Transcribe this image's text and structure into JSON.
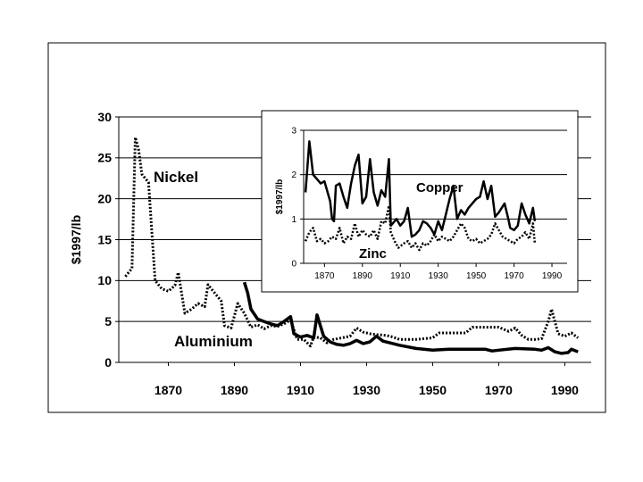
{
  "chart_data": [
    {
      "type": "line",
      "title": "",
      "xlabel": "",
      "ylabel": "$1997/lb",
      "xlim": [
        1855,
        1998
      ],
      "ylim": [
        0,
        30
      ],
      "yticks": [
        "0",
        "5",
        "10",
        "15",
        "20",
        "25",
        "30"
      ],
      "xticks": [
        "1870",
        "1890",
        "1910",
        "1930",
        "1950",
        "1970",
        "1990"
      ],
      "grid": "horizontal",
      "series": [
        {
          "name": "Nickel",
          "style": "dotted",
          "points": [
            [
              1857,
              10.5
            ],
            [
              1859,
              11.5
            ],
            [
              1860,
              27.5
            ],
            [
              1861,
              26
            ],
            [
              1862,
              23
            ],
            [
              1864,
              22
            ],
            [
              1865,
              16
            ],
            [
              1866,
              10
            ],
            [
              1868,
              9
            ],
            [
              1870,
              8.7
            ],
            [
              1872,
              9.4
            ],
            [
              1873,
              11
            ],
            [
              1875,
              6
            ],
            [
              1877,
              6.5
            ],
            [
              1879,
              7.2
            ],
            [
              1881,
              6.8
            ],
            [
              1882,
              9.5
            ],
            [
              1884,
              8.5
            ],
            [
              1886,
              7.5
            ],
            [
              1887,
              4.5
            ],
            [
              1889,
              4.2
            ],
            [
              1891,
              7.2
            ],
            [
              1893,
              6
            ],
            [
              1895,
              4.3
            ],
            [
              1897,
              4.6
            ],
            [
              1899,
              4.1
            ],
            [
              1901,
              4.5
            ],
            [
              1903,
              4.4
            ],
            [
              1905,
              4.7
            ],
            [
              1907,
              5.2
            ],
            [
              1909,
              2.8
            ],
            [
              1911,
              2.8
            ],
            [
              1913,
              2
            ],
            [
              1914,
              3.1
            ],
            [
              1916,
              3
            ],
            [
              1918,
              2.4
            ],
            [
              1920,
              2.8
            ],
            [
              1925,
              3.2
            ],
            [
              1927,
              4.2
            ],
            [
              1929,
              3.7
            ],
            [
              1931,
              3.5
            ],
            [
              1933,
              3.4
            ],
            [
              1936,
              3.3
            ],
            [
              1938,
              3.1
            ],
            [
              1940,
              2.8
            ],
            [
              1945,
              2.8
            ],
            [
              1950,
              3
            ],
            [
              1952,
              3.6
            ],
            [
              1960,
              3.6
            ],
            [
              1962,
              4.3
            ],
            [
              1970,
              4.3
            ],
            [
              1973,
              3.8
            ],
            [
              1975,
              4.2
            ],
            [
              1977,
              3.3
            ],
            [
              1979,
              2.8
            ],
            [
              1981,
              2.8
            ],
            [
              1983,
              2.9
            ],
            [
              1985,
              5
            ],
            [
              1986,
              6.5
            ],
            [
              1988,
              3.5
            ],
            [
              1990,
              3.2
            ],
            [
              1992,
              3.6
            ],
            [
              1994,
              3
            ]
          ]
        },
        {
          "name": "Aluminium",
          "style": "solid",
          "points": [
            [
              1893,
              9.8
            ],
            [
              1894,
              8.5
            ],
            [
              1895,
              6.5
            ],
            [
              1897,
              5.3
            ],
            [
              1899,
              5
            ],
            [
              1901,
              4.7
            ],
            [
              1903,
              4.5
            ],
            [
              1905,
              5
            ],
            [
              1907,
              5.6
            ],
            [
              1908,
              3.5
            ],
            [
              1910,
              3.1
            ],
            [
              1912,
              3.3
            ],
            [
              1914,
              3
            ],
            [
              1915,
              5.8
            ],
            [
              1917,
              3.2
            ],
            [
              1919,
              2.5
            ],
            [
              1921,
              2.2
            ],
            [
              1923,
              2.1
            ],
            [
              1925,
              2.3
            ],
            [
              1927,
              2.7
            ],
            [
              1929,
              2.3
            ],
            [
              1931,
              2.5
            ],
            [
              1933,
              3.2
            ],
            [
              1935,
              2.6
            ],
            [
              1938,
              2.3
            ],
            [
              1940,
              2.1
            ],
            [
              1945,
              1.7
            ],
            [
              1950,
              1.5
            ],
            [
              1955,
              1.6
            ],
            [
              1960,
              1.6
            ],
            [
              1966,
              1.6
            ],
            [
              1968,
              1.4
            ],
            [
              1970,
              1.5
            ],
            [
              1975,
              1.7
            ],
            [
              1981,
              1.6
            ],
            [
              1983,
              1.5
            ],
            [
              1985,
              1.8
            ],
            [
              1987,
              1.3
            ],
            [
              1989,
              1.1
            ],
            [
              1991,
              1.2
            ],
            [
              1992,
              1.6
            ],
            [
              1994,
              1.3
            ]
          ]
        }
      ]
    },
    {
      "type": "line",
      "title": "",
      "xlabel": "",
      "ylabel": "$1997/lb",
      "xlim": [
        1859,
        1998
      ],
      "ylim": [
        0,
        3
      ],
      "yticks": [
        "0",
        "1",
        "2",
        "3"
      ],
      "xticks": [
        "1870",
        "1890",
        "1910",
        "1930",
        "1950",
        "1970",
        "1990"
      ],
      "grid": "horizontal",
      "series": [
        {
          "name": "Copper",
          "style": "solid",
          "points": [
            [
              1860,
              1.6
            ],
            [
              1862,
              2.75
            ],
            [
              1864,
              2
            ],
            [
              1866,
              1.9
            ],
            [
              1868,
              1.8
            ],
            [
              1870,
              1.85
            ],
            [
              1873,
              1.4
            ],
            [
              1874,
              1
            ],
            [
              1875,
              0.95
            ],
            [
              1876,
              1.75
            ],
            [
              1878,
              1.8
            ],
            [
              1880,
              1.5
            ],
            [
              1882,
              1.25
            ],
            [
              1884,
              1.8
            ],
            [
              1886,
              2.2
            ],
            [
              1888,
              2.45
            ],
            [
              1890,
              1.35
            ],
            [
              1892,
              1.5
            ],
            [
              1894,
              2.35
            ],
            [
              1896,
              1.6
            ],
            [
              1898,
              1.3
            ],
            [
              1900,
              1.65
            ],
            [
              1902,
              1.5
            ],
            [
              1904,
              2.35
            ],
            [
              1905,
              0.85
            ],
            [
              1908,
              1
            ],
            [
              1910,
              0.85
            ],
            [
              1912,
              0.95
            ],
            [
              1914,
              1.25
            ],
            [
              1916,
              0.6
            ],
            [
              1918,
              0.65
            ],
            [
              1920,
              0.75
            ],
            [
              1922,
              0.95
            ],
            [
              1924,
              0.9
            ],
            [
              1926,
              0.8
            ],
            [
              1928,
              0.65
            ],
            [
              1930,
              0.95
            ],
            [
              1932,
              0.75
            ],
            [
              1934,
              1.1
            ],
            [
              1936,
              1.45
            ],
            [
              1938,
              1.75
            ],
            [
              1940,
              1
            ],
            [
              1942,
              1.2
            ],
            [
              1944,
              1.1
            ],
            [
              1946,
              1.25
            ],
            [
              1950,
              1.45
            ],
            [
              1952,
              1.5
            ],
            [
              1954,
              1.85
            ],
            [
              1956,
              1.45
            ],
            [
              1958,
              1.75
            ],
            [
              1960,
              1.05
            ],
            [
              1962,
              1.15
            ],
            [
              1965,
              1.35
            ],
            [
              1967,
              1
            ],
            [
              1968,
              0.8
            ],
            [
              1970,
              0.75
            ],
            [
              1972,
              0.85
            ],
            [
              1974,
              1.35
            ],
            [
              1976,
              1.1
            ],
            [
              1978,
              0.9
            ],
            [
              1980,
              1.25
            ],
            [
              1981,
              0.95
            ]
          ]
        },
        {
          "name": "Zinc",
          "style": "dotted",
          "points": [
            [
              1860,
              0.5
            ],
            [
              1862,
              0.7
            ],
            [
              1864,
              0.8
            ],
            [
              1866,
              0.5
            ],
            [
              1868,
              0.55
            ],
            [
              1870,
              0.45
            ],
            [
              1872,
              0.5
            ],
            [
              1874,
              0.6
            ],
            [
              1876,
              0.55
            ],
            [
              1878,
              0.8
            ],
            [
              1880,
              0.45
            ],
            [
              1882,
              0.6
            ],
            [
              1884,
              0.55
            ],
            [
              1886,
              0.9
            ],
            [
              1888,
              0.6
            ],
            [
              1890,
              0.75
            ],
            [
              1892,
              0.65
            ],
            [
              1894,
              0.6
            ],
            [
              1896,
              0.75
            ],
            [
              1898,
              0.55
            ],
            [
              1900,
              0.95
            ],
            [
              1902,
              0.9
            ],
            [
              1904,
              1.3
            ],
            [
              1905,
              0.7
            ],
            [
              1907,
              0.5
            ],
            [
              1909,
              0.35
            ],
            [
              1912,
              0.45
            ],
            [
              1914,
              0.5
            ],
            [
              1916,
              0.35
            ],
            [
              1918,
              0.45
            ],
            [
              1920,
              0.3
            ],
            [
              1922,
              0.45
            ],
            [
              1924,
              0.4
            ],
            [
              1926,
              0.5
            ],
            [
              1928,
              0.65
            ],
            [
              1930,
              0.5
            ],
            [
              1932,
              0.6
            ],
            [
              1934,
              0.55
            ],
            [
              1936,
              0.5
            ],
            [
              1938,
              0.6
            ],
            [
              1940,
              0.75
            ],
            [
              1942,
              0.9
            ],
            [
              1944,
              0.8
            ],
            [
              1946,
              0.55
            ],
            [
              1948,
              0.5
            ],
            [
              1950,
              0.55
            ],
            [
              1952,
              0.45
            ],
            [
              1954,
              0.5
            ],
            [
              1956,
              0.55
            ],
            [
              1958,
              0.65
            ],
            [
              1960,
              0.9
            ],
            [
              1962,
              0.75
            ],
            [
              1964,
              0.6
            ],
            [
              1966,
              0.55
            ],
            [
              1968,
              0.5
            ],
            [
              1970,
              0.45
            ],
            [
              1972,
              0.55
            ],
            [
              1974,
              0.6
            ],
            [
              1976,
              0.7
            ],
            [
              1978,
              0.55
            ],
            [
              1980,
              0.9
            ],
            [
              1981,
              0.45
            ]
          ]
        }
      ]
    }
  ]
}
